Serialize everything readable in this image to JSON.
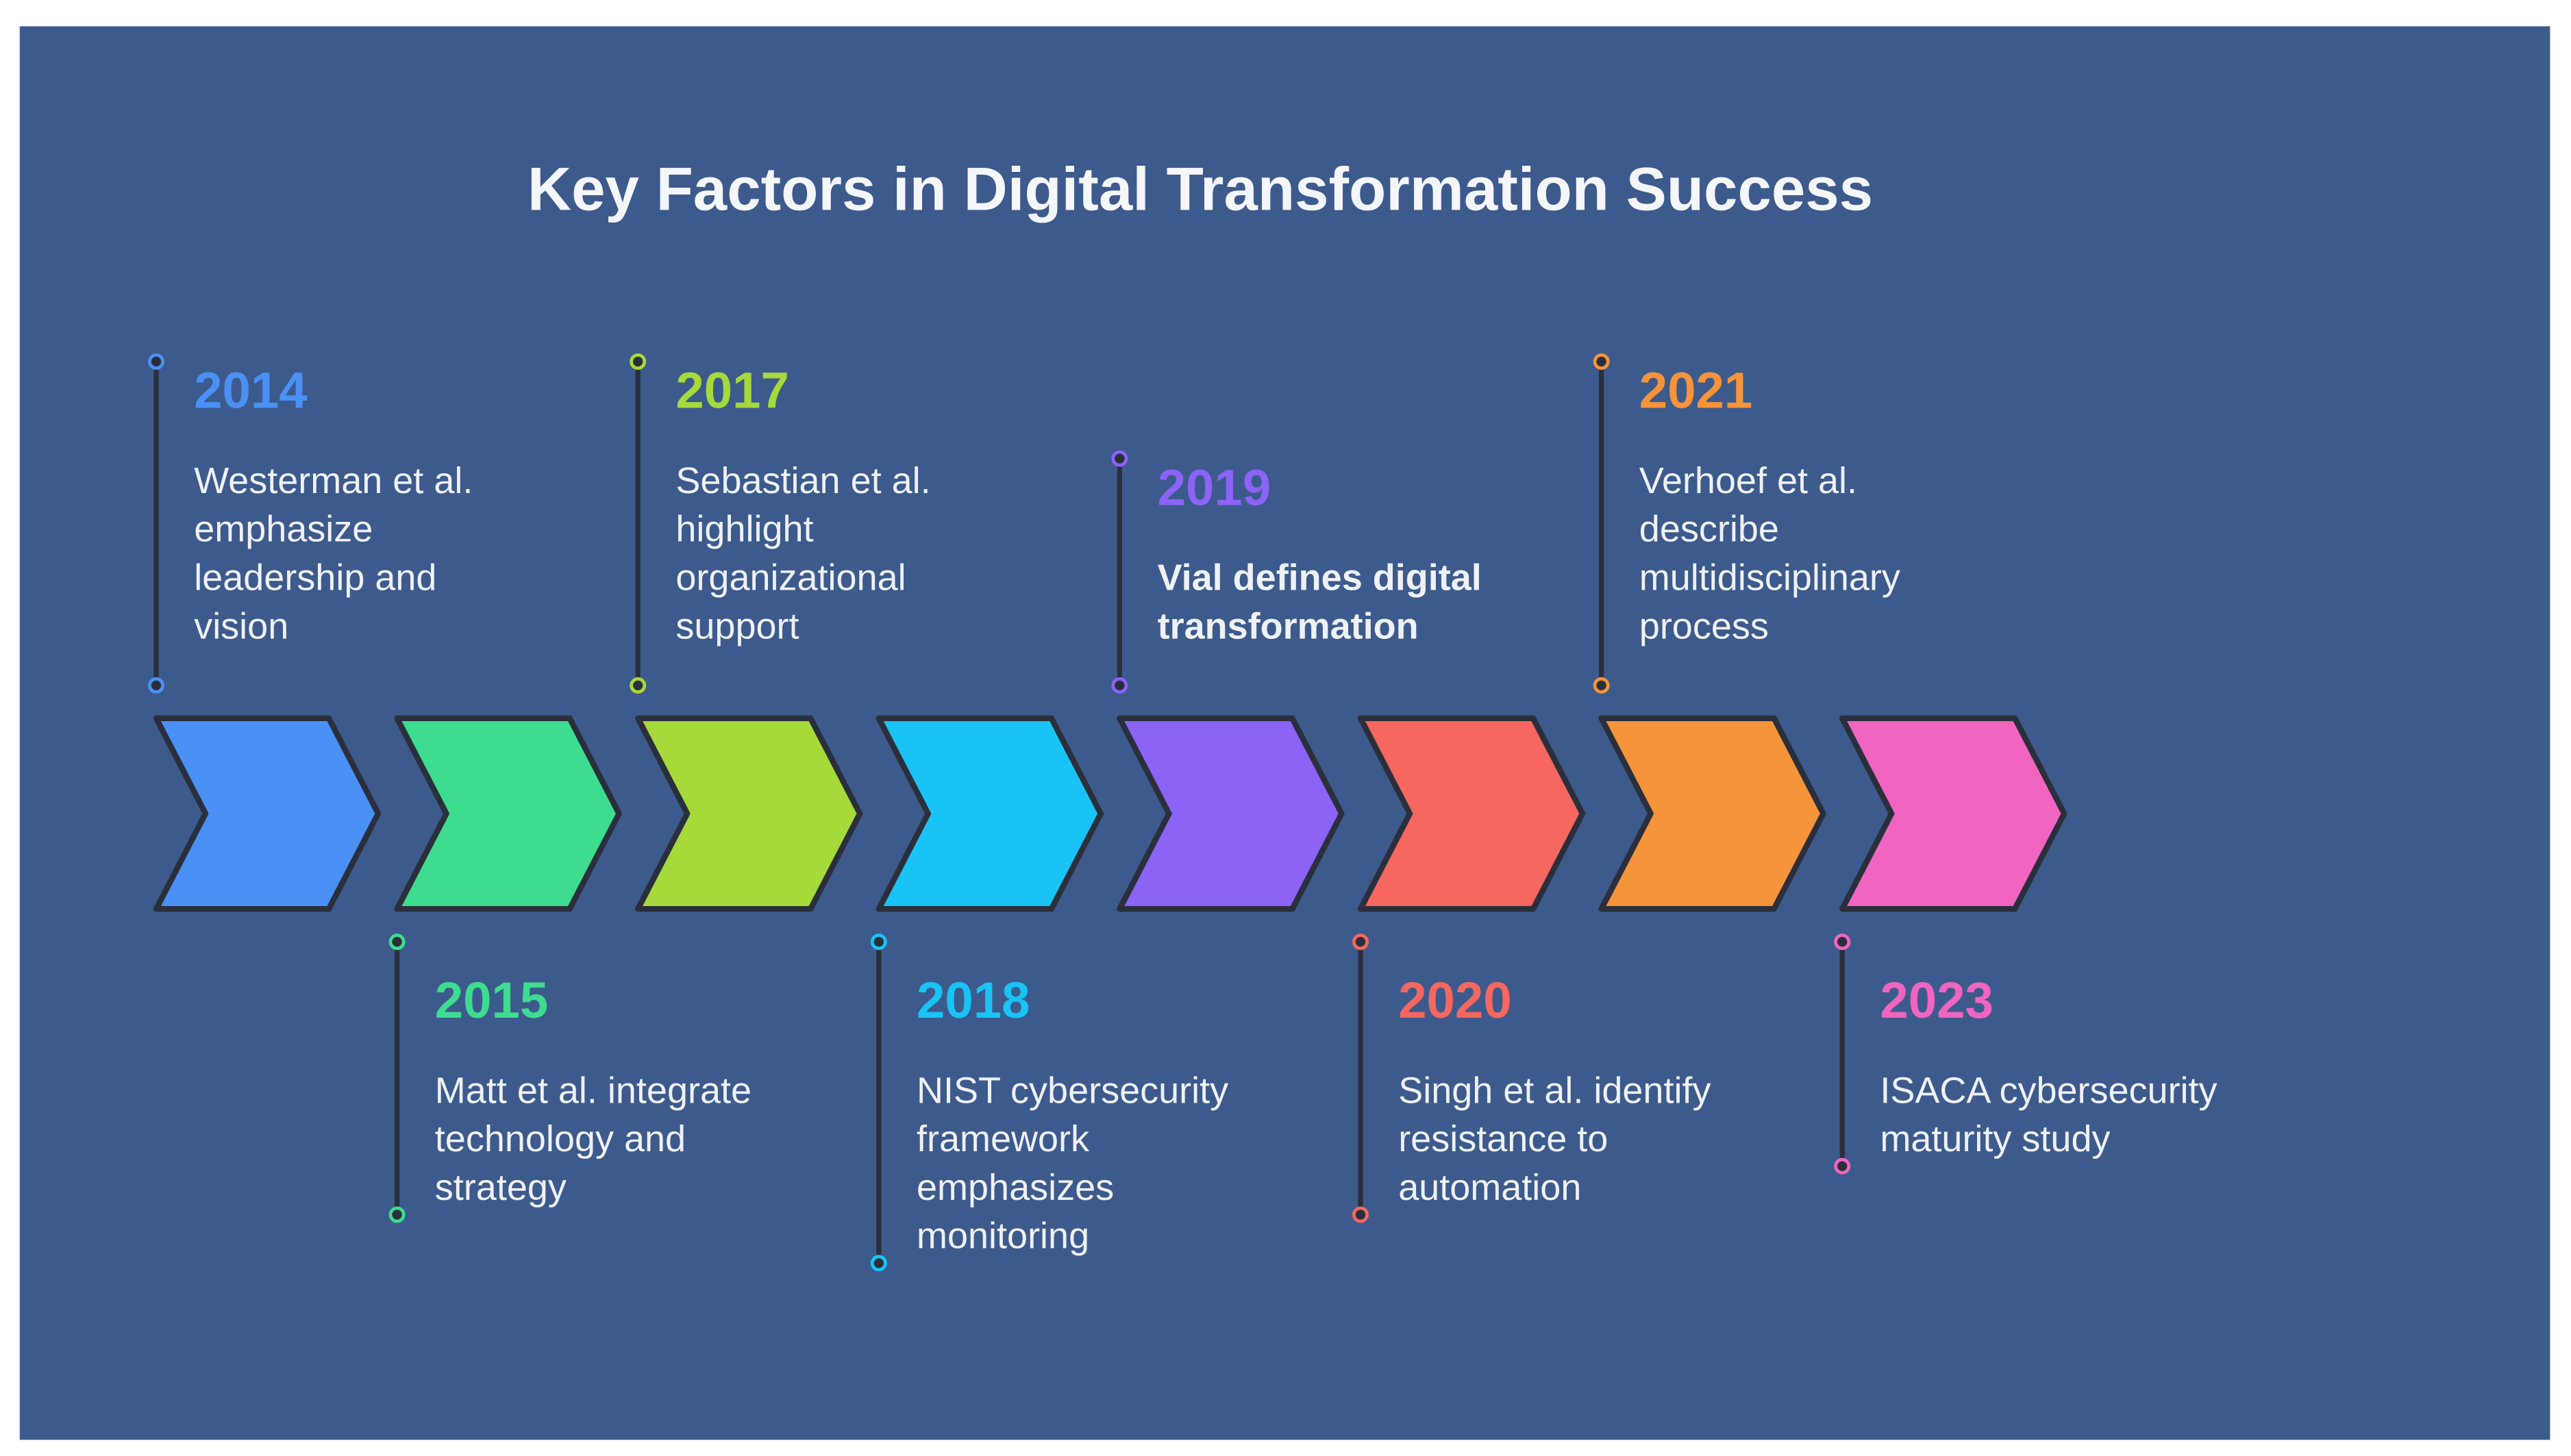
{
  "title": "Key Factors in Digital Transformation Success",
  "events": [
    {
      "year": "2014",
      "color": "#4a90f5",
      "lines": [
        "Westerman et al.",
        "emphasize",
        "leadership and",
        "vision"
      ]
    },
    {
      "year": "2015",
      "color": "#3ddc8f",
      "lines": [
        "Matt et al. integrate",
        "technology and",
        "strategy"
      ]
    },
    {
      "year": "2017",
      "color": "#a6d93a",
      "lines": [
        "Sebastian et al.",
        "highlight",
        "organizational",
        "support"
      ]
    },
    {
      "year": "2018",
      "color": "#19c3f5",
      "lines": [
        "NIST cybersecurity",
        "framework",
        "emphasizes",
        "monitoring"
      ]
    },
    {
      "year": "2019",
      "color": "#8b63f5",
      "lines": [
        "Vial defines digital",
        "transformation"
      ],
      "bold": true
    },
    {
      "year": "2020",
      "color": "#f5675f",
      "lines": [
        "Singh et al. identify",
        "resistance to",
        "automation"
      ]
    },
    {
      "year": "2021",
      "color": "#f5943a",
      "lines": [
        "Verhoef et al.",
        "describe",
        "multidisciplinary",
        "process"
      ]
    },
    {
      "year": "2023",
      "color": "#f065c0",
      "lines": [
        "ISACA cybersecurity",
        "maturity study"
      ]
    }
  ]
}
